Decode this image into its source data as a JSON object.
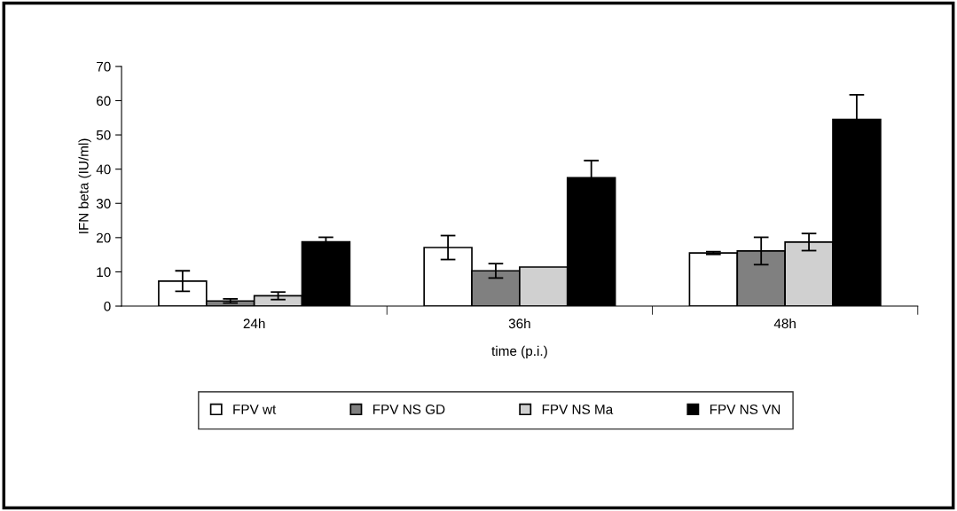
{
  "chart_data": {
    "type": "bar",
    "xlabel": "time (p.i.)",
    "ylabel": "IFN beta (IU/ml)",
    "categories": [
      "24h",
      "36h",
      "48h"
    ],
    "series": [
      {
        "name": "FPV wt",
        "color": "#ffffff",
        "values": [
          7.3,
          17.1,
          15.5
        ],
        "errors": [
          3.0,
          3.5,
          0.4
        ]
      },
      {
        "name": "FPV NS GD",
        "color": "#808080",
        "values": [
          1.5,
          10.3,
          16.1
        ],
        "errors": [
          0.6,
          2.1,
          4.0
        ]
      },
      {
        "name": "FPV NS Ma",
        "color": "#d0d0d0",
        "values": [
          3.0,
          11.4,
          18.7
        ],
        "errors": [
          1.1,
          null,
          2.5
        ]
      },
      {
        "name": "FPV NS VN",
        "color": "#000000",
        "values": [
          18.8,
          37.5,
          54.5
        ],
        "errors": [
          1.3,
          5.0,
          7.2
        ]
      }
    ],
    "ylim": [
      0,
      70
    ],
    "yticks": [
      0,
      10,
      20,
      30,
      40,
      50,
      60,
      70
    ],
    "grid": false,
    "legend": "bottom"
  }
}
